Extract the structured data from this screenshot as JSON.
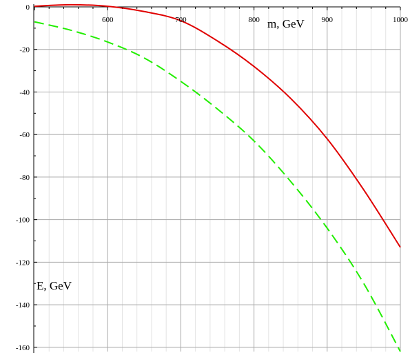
{
  "chart_data": {
    "type": "line",
    "xlabel": "m, GeV",
    "ylabel": "E, GeV",
    "xlim": [
      500,
      1000
    ],
    "ylim": [
      -162,
      0
    ],
    "x_ticks": [
      600,
      700,
      800,
      900,
      1000
    ],
    "y_ticks": [
      0,
      -20,
      -40,
      -60,
      -80,
      -100,
      -120,
      -140,
      -160
    ],
    "x_tick_labels": [
      "600",
      "700",
      "800",
      "900",
      "1000"
    ],
    "y_tick_labels": [
      "0",
      "-20",
      "-40",
      "-60",
      "-80",
      "-100",
      "-120",
      "-140",
      "-160"
    ],
    "grid": true,
    "series": [
      {
        "color": "#e00000",
        "style": "solid",
        "x": [
          500,
          550,
          600,
          650,
          700,
          750,
          800,
          850,
          900,
          950,
          1000
        ],
        "y": [
          0.3,
          1.0,
          0.3,
          -2.2,
          -6.5,
          -16,
          -28,
          -43,
          -62,
          -86,
          -113
        ]
      },
      {
        "color": "#22ee00",
        "style": "dashed",
        "x": [
          500,
          550,
          600,
          650,
          700,
          750,
          800,
          850,
          900,
          950,
          1000
        ],
        "y": [
          -7,
          -11,
          -16.5,
          -24,
          -35,
          -48,
          -63,
          -82,
          -104,
          -130,
          -162
        ]
      }
    ]
  }
}
